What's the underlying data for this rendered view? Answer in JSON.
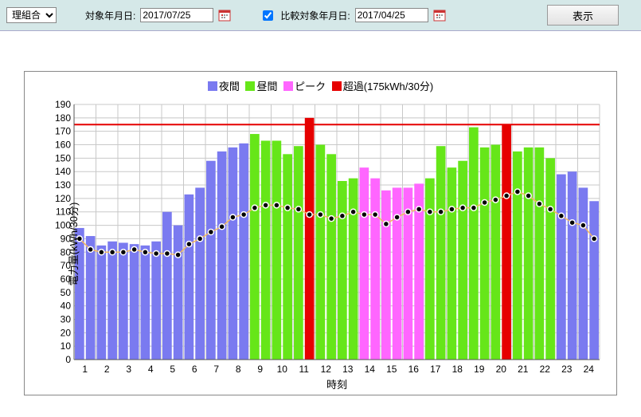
{
  "toolbar": {
    "dropdown_value": "理組合",
    "target_label": "対象年月日:",
    "target_date": "2017/07/25",
    "compare_checked": true,
    "compare_label": "比較対象年月日:",
    "compare_date": "2017/04/25",
    "show_button": "表示"
  },
  "legend": {
    "night": "夜間",
    "day": "昼間",
    "peak": "ピーク",
    "over": "超過(175kWh/30分)"
  },
  "chart": {
    "type": "bar",
    "y_title": "電力量(kWh/30分)",
    "x_title": "時刻",
    "ylim": [
      0,
      190
    ],
    "ytick_step": 10,
    "x_labels": [
      "1",
      "2",
      "3",
      "4",
      "5",
      "6",
      "7",
      "8",
      "9",
      "10",
      "11",
      "12",
      "13",
      "14",
      "15",
      "16",
      "17",
      "18",
      "19",
      "20",
      "21",
      "22",
      "23",
      "24"
    ],
    "threshold": 175,
    "colors": {
      "night": "#7a7af0",
      "day": "#66e619",
      "peak": "#ff66ff",
      "over": "#e60000",
      "threshold": "#e60000",
      "grid": "#c8c8c8",
      "axis": "#555555",
      "compare_line": "#f2b760",
      "compare_dot_fill": "#000000",
      "compare_dot_stroke": "#ffffff",
      "bg": "#ffffff",
      "text": "#000000"
    },
    "bar_width_ratio": 0.85,
    "bars": [
      {
        "v": 98,
        "c": "night"
      },
      {
        "v": 92,
        "c": "night"
      },
      {
        "v": 85,
        "c": "night"
      },
      {
        "v": 88,
        "c": "night"
      },
      {
        "v": 87,
        "c": "night"
      },
      {
        "v": 86,
        "c": "night"
      },
      {
        "v": 85,
        "c": "night"
      },
      {
        "v": 88,
        "c": "night"
      },
      {
        "v": 110,
        "c": "night"
      },
      {
        "v": 100,
        "c": "night"
      },
      {
        "v": 123,
        "c": "night"
      },
      {
        "v": 128,
        "c": "night"
      },
      {
        "v": 148,
        "c": "night"
      },
      {
        "v": 155,
        "c": "night"
      },
      {
        "v": 158,
        "c": "night"
      },
      {
        "v": 161,
        "c": "night"
      },
      {
        "v": 168,
        "c": "day"
      },
      {
        "v": 163,
        "c": "day"
      },
      {
        "v": 163,
        "c": "day"
      },
      {
        "v": 153,
        "c": "day"
      },
      {
        "v": 159,
        "c": "day"
      },
      {
        "v": 180,
        "c": "over"
      },
      {
        "v": 160,
        "c": "day"
      },
      {
        "v": 153,
        "c": "day"
      },
      {
        "v": 133,
        "c": "day"
      },
      {
        "v": 135,
        "c": "day"
      },
      {
        "v": 143,
        "c": "peak"
      },
      {
        "v": 135,
        "c": "peak"
      },
      {
        "v": 126,
        "c": "peak"
      },
      {
        "v": 128,
        "c": "peak"
      },
      {
        "v": 128,
        "c": "peak"
      },
      {
        "v": 131,
        "c": "peak"
      },
      {
        "v": 135,
        "c": "day"
      },
      {
        "v": 159,
        "c": "day"
      },
      {
        "v": 143,
        "c": "day"
      },
      {
        "v": 148,
        "c": "day"
      },
      {
        "v": 173,
        "c": "day"
      },
      {
        "v": 158,
        "c": "day"
      },
      {
        "v": 160,
        "c": "day"
      },
      {
        "v": 175,
        "c": "over"
      },
      {
        "v": 155,
        "c": "day"
      },
      {
        "v": 158,
        "c": "day"
      },
      {
        "v": 158,
        "c": "day"
      },
      {
        "v": 150,
        "c": "day"
      },
      {
        "v": 138,
        "c": "night"
      },
      {
        "v": 140,
        "c": "night"
      },
      {
        "v": 128,
        "c": "night"
      },
      {
        "v": 118,
        "c": "night"
      }
    ],
    "compare": [
      90,
      82,
      80,
      80,
      80,
      82,
      80,
      79,
      79,
      78,
      86,
      90,
      95,
      99,
      106,
      108,
      113,
      115,
      115,
      113,
      112,
      108,
      108,
      105,
      107,
      110,
      108,
      108,
      101,
      106,
      110,
      112,
      110,
      110,
      112,
      113,
      113,
      117,
      119,
      122,
      125,
      122,
      116,
      112,
      107,
      102,
      100,
      90
    ]
  }
}
